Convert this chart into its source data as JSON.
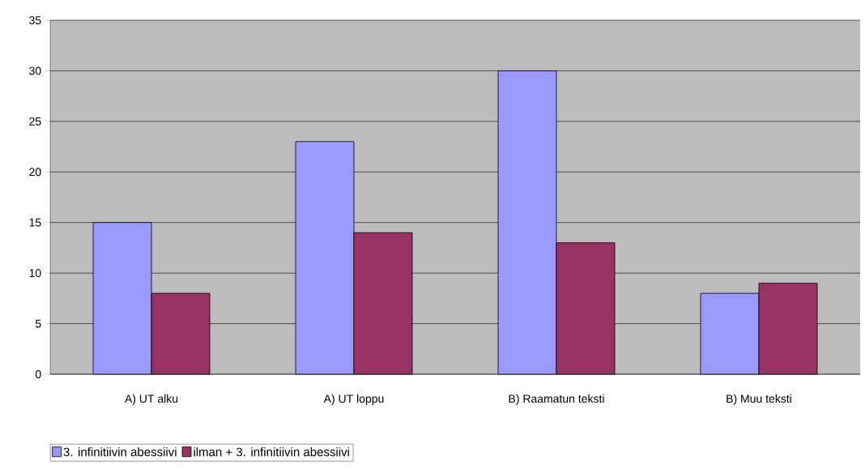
{
  "chart_data": {
    "type": "bar",
    "categories": [
      "A) UT alku",
      "A) UT loppu",
      "B) Raamatun teksti",
      "B) Muu teksti"
    ],
    "series": [
      {
        "name": "3. infinitiivin abessiivi",
        "color": "#9999ff",
        "values": [
          15,
          23,
          30,
          8
        ]
      },
      {
        "name": "ilman + 3. infinitiivin abessiivi",
        "color": "#993366",
        "values": [
          8,
          14,
          13,
          9
        ]
      }
    ],
    "ylim": [
      0,
      35
    ],
    "yticks": [
      0,
      5,
      10,
      15,
      20,
      25,
      30,
      35
    ],
    "grid": "y",
    "legend": "bottom left"
  }
}
